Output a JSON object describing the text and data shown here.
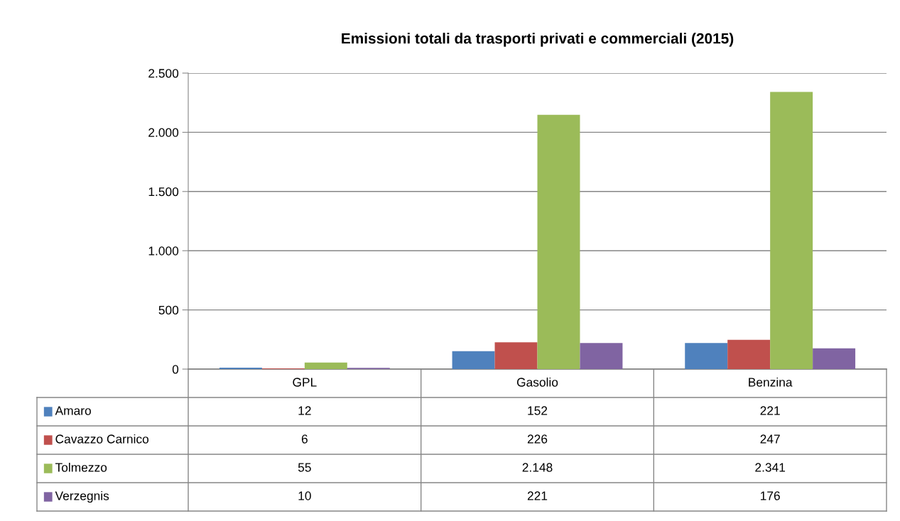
{
  "chart_data": {
    "type": "bar",
    "title": "Emissioni totali da trasporti privati e commerciali (2015)",
    "categories": [
      "GPL",
      "Gasolio",
      "Benzina"
    ],
    "series": [
      {
        "name": "Amaro",
        "color": "#4f81bd",
        "values": [
          12,
          152,
          221
        ],
        "value_labels": [
          "12",
          "152",
          "221"
        ]
      },
      {
        "name": "Cavazzo Carnico",
        "color": "#c0504d",
        "values": [
          6,
          226,
          247
        ],
        "value_labels": [
          "6",
          "226",
          "247"
        ]
      },
      {
        "name": "Tolmezzo",
        "color": "#9bbb59",
        "values": [
          55,
          2148,
          2341
        ],
        "value_labels": [
          "55",
          "2.148",
          "2.341"
        ]
      },
      {
        "name": "Verzegnis",
        "color": "#8064a2",
        "values": [
          10,
          221,
          176
        ],
        "value_labels": [
          "10",
          "221",
          "176"
        ]
      }
    ],
    "ylim": [
      0,
      2500
    ],
    "yticks": [
      0,
      {
        "value": 500,
        "label": "500"
      },
      {
        "value": 1000,
        "label": "1.000"
      },
      {
        "value": 1500,
        "label": "1.500"
      },
      {
        "value": 2000,
        "label": "2.000"
      },
      {
        "value": 2500,
        "label": "2.500"
      }
    ],
    "grid": "y",
    "legend": "bottom"
  }
}
